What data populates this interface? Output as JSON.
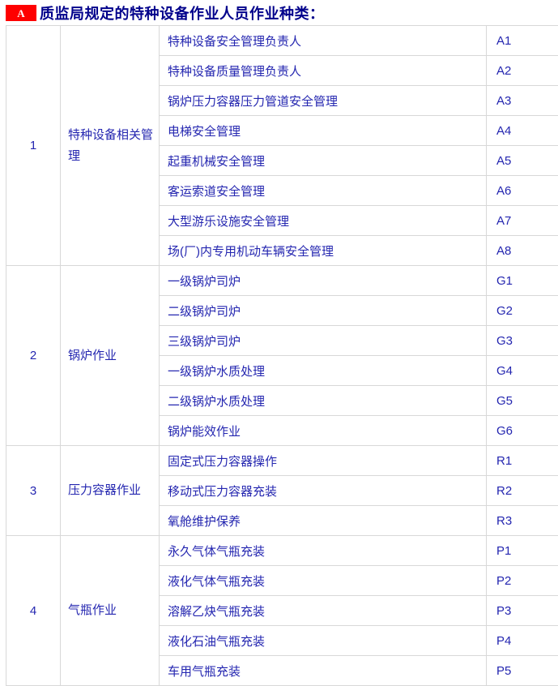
{
  "header": {
    "badge": "A",
    "title": "质监局规定的特种设备作业人员作业种类："
  },
  "colors": {
    "badge_bg": "#FE0000",
    "badge_text": "#FFFFFF",
    "title_text": "#00008B",
    "cell_text": "#2426B0",
    "border": "#D8D8D8"
  },
  "table": {
    "groups": [
      {
        "index": "1",
        "category": "特种设备相关管理",
        "items": [
          {
            "name": "特种设备安全管理负责人",
            "code": "A1"
          },
          {
            "name": "特种设备质量管理负责人",
            "code": "A2"
          },
          {
            "name": "锅炉压力容器压力管道安全管理",
            "code": "A3"
          },
          {
            "name": "电梯安全管理",
            "code": "A4"
          },
          {
            "name": "起重机械安全管理",
            "code": "A5"
          },
          {
            "name": "客运索道安全管理",
            "code": "A6"
          },
          {
            "name": "大型游乐设施安全管理",
            "code": "A7"
          },
          {
            "name": "场(厂)内专用机动车辆安全管理",
            "code": "A8"
          }
        ]
      },
      {
        "index": "2",
        "category": "锅炉作业",
        "items": [
          {
            "name": "一级锅炉司炉",
            "code": "G1"
          },
          {
            "name": "二级锅炉司炉",
            "code": "G2"
          },
          {
            "name": "三级锅炉司炉",
            "code": "G3"
          },
          {
            "name": "一级锅炉水质处理",
            "code": "G4"
          },
          {
            "name": "二级锅炉水质处理",
            "code": "G5"
          },
          {
            "name": "锅炉能效作业",
            "code": "G6"
          }
        ]
      },
      {
        "index": "3",
        "category": "压力容器作业",
        "items": [
          {
            "name": "固定式压力容器操作",
            "code": "R1"
          },
          {
            "name": "移动式压力容器充装",
            "code": "R2"
          },
          {
            "name": "氧舱维护保养",
            "code": "R3"
          }
        ]
      },
      {
        "index": "4",
        "category": "气瓶作业",
        "items": [
          {
            "name": "永久气体气瓶充装",
            "code": "P1"
          },
          {
            "name": "液化气体气瓶充装",
            "code": "P2"
          },
          {
            "name": "溶解乙炔气瓶充装",
            "code": "P3"
          },
          {
            "name": "液化石油气瓶充装",
            "code": "P4"
          },
          {
            "name": "车用气瓶充装",
            "code": "P5"
          }
        ]
      }
    ]
  }
}
